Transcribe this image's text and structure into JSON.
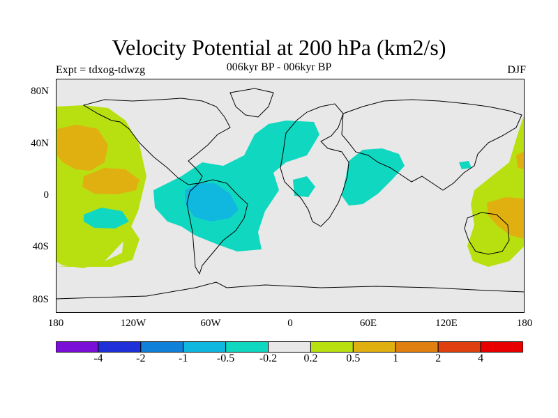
{
  "title": "Velocity Potential at 200 hPa (km2/s)",
  "subtitle": "006kyr BP - 006kyr BP",
  "experiment_label": "Expt = tdxog-tdwzg",
  "season": "DJF",
  "map": {
    "latitude_labels": [
      "80N",
      "40N",
      "0",
      "40S",
      "80S"
    ],
    "longitude_labels": [
      "180",
      "120W",
      "60W",
      "0",
      "60E",
      "120E",
      "180"
    ],
    "background_color": "#e8e8e8",
    "coastline_color": "#000000"
  },
  "colorbar": {
    "colors": [
      "#7a10d8",
      "#2030d8",
      "#1080d8",
      "#10b8e0",
      "#10d8c0",
      "#e8e8e8",
      "#b8e010",
      "#e0b010",
      "#e08010",
      "#e04010",
      "#e80000"
    ],
    "labels": [
      "-4",
      "-2",
      "-1",
      "-0.5",
      "-0.2",
      "0.2",
      "0.5",
      "1",
      "2",
      "4"
    ]
  },
  "regions": [
    {
      "name": "north-pacific-yellow",
      "color": "#b8e010"
    },
    {
      "name": "north-pacific-orange",
      "color": "#e0b010"
    },
    {
      "name": "south-pacific-yellow",
      "color": "#b8e010"
    },
    {
      "name": "america-atlantic-cyan",
      "color": "#10d8c0"
    },
    {
      "name": "south-america-blue",
      "color": "#10b8e0"
    },
    {
      "name": "indian-ocean-cyan",
      "color": "#10d8c0"
    },
    {
      "name": "west-pacific-yellow",
      "color": "#b8e010"
    },
    {
      "name": "west-pacific-orange",
      "color": "#e0b010"
    }
  ]
}
